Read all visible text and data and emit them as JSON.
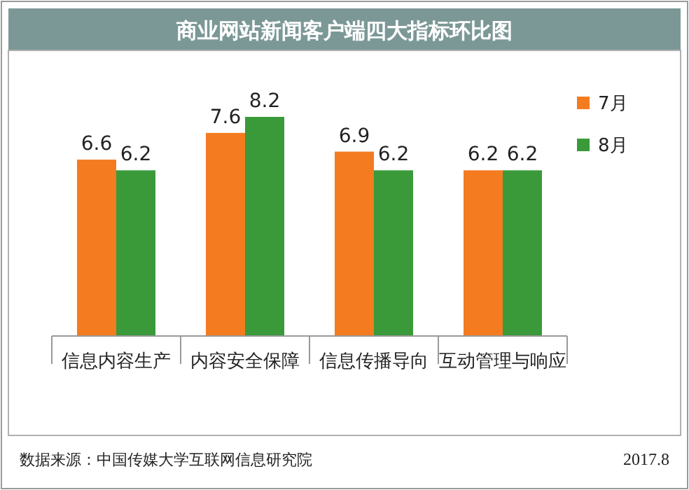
{
  "chart_data": {
    "type": "bar",
    "title": "商业网站新闻客户端四大指标环比图",
    "categories": [
      "信息内容生产",
      "内容安全保障",
      "信息传播导向",
      "互动管理与响应"
    ],
    "series": [
      {
        "name": "7月",
        "color": "#f47b20",
        "values": [
          6.6,
          7.6,
          6.9,
          6.2
        ]
      },
      {
        "name": "8月",
        "color": "#3a9a3a",
        "values": [
          6.2,
          8.2,
          6.2,
          6.2
        ]
      }
    ],
    "data_labels": true,
    "legend": "right",
    "annotations": [
      "数据来源：中国传媒大学互联网信息研究院",
      "2017.8"
    ]
  }
}
